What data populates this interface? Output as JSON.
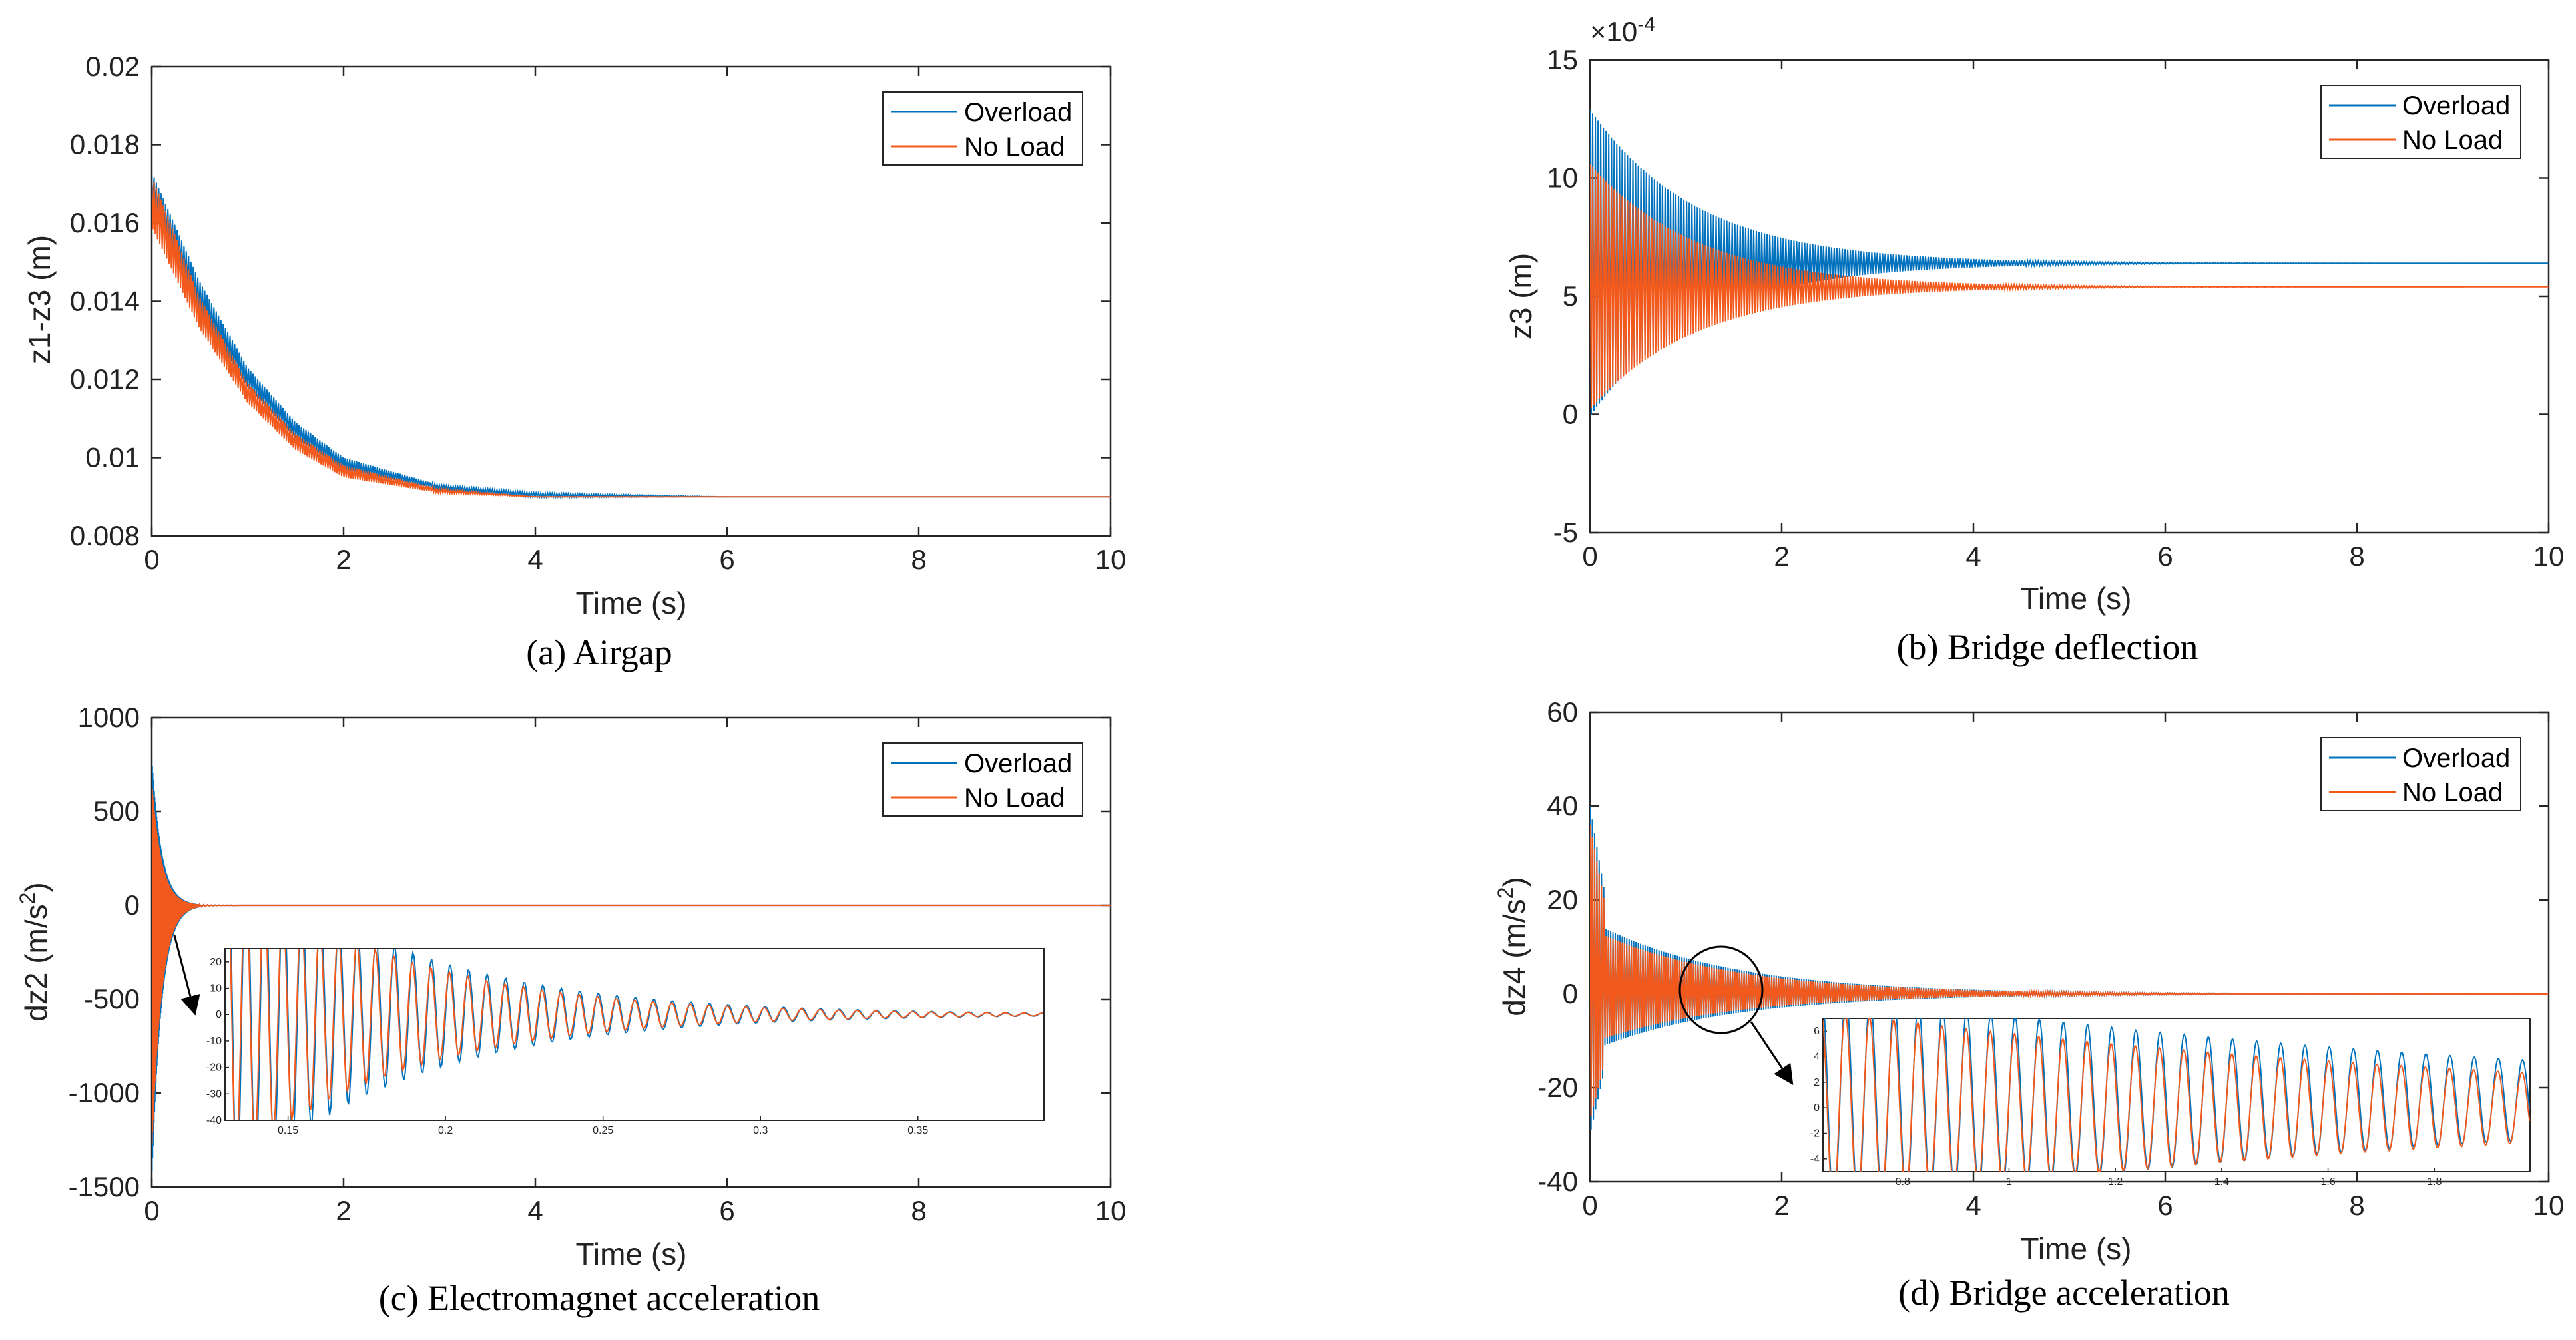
{
  "colors": {
    "overload": "#0072BD",
    "noload": "#F2591C"
  },
  "chart_data": [
    {
      "type": "line",
      "caption": "(a) Airgap",
      "xlabel": "Time (s)",
      "ylabel": "z1-z3 (m)",
      "xlim": [
        0,
        10
      ],
      "ylim": [
        0.008,
        0.02
      ],
      "xticks": [
        0,
        2,
        4,
        6,
        8,
        10
      ],
      "xtick_labels": [
        "0",
        "2",
        "4",
        "6",
        "8",
        "10"
      ],
      "yticks": [
        0.008,
        0.01,
        0.012,
        0.014,
        0.016,
        0.018,
        0.02
      ],
      "ytick_labels": [
        "0.008",
        "0.01",
        "0.012",
        "0.014",
        "0.016",
        "0.018",
        "0.02"
      ],
      "legend": [
        "Overload",
        "No Load"
      ],
      "series": [
        {
          "name": "Overload",
          "t": [
            0,
            0.5,
            1,
            1.5,
            2,
            3,
            4,
            6,
            10
          ],
          "upper": [
            0.0173,
            0.0145,
            0.0123,
            0.0109,
            0.01,
            0.0093,
            0.0091,
            0.009,
            0.009
          ],
          "lower": [
            0.0165,
            0.0137,
            0.0118,
            0.0105,
            0.0097,
            0.0092,
            0.009,
            0.009,
            0.009
          ]
        },
        {
          "name": "No Load",
          "t": [
            0,
            0.5,
            1,
            1.5,
            2,
            3,
            4,
            6,
            10
          ],
          "upper": [
            0.0172,
            0.0141,
            0.0119,
            0.0106,
            0.0098,
            0.0092,
            0.009,
            0.009,
            0.009
          ],
          "lower": [
            0.0159,
            0.0133,
            0.0114,
            0.0102,
            0.0095,
            0.0091,
            0.009,
            0.009,
            0.009
          ]
        }
      ]
    },
    {
      "type": "line",
      "caption": "(b) Bridge deflection",
      "xlabel": "Time (s)",
      "ylabel": "z3 (m)",
      "exponent": "×10",
      "exponent_power": "-4",
      "xlim": [
        0,
        10
      ],
      "ylim": [
        -5,
        15
      ],
      "xticks": [
        0,
        2,
        4,
        6,
        8,
        10
      ],
      "xtick_labels": [
        "0",
        "2",
        "4",
        "6",
        "8",
        "10"
      ],
      "yticks": [
        -5,
        0,
        5,
        10,
        15
      ],
      "ytick_labels": [
        "-5",
        "0",
        "5",
        "10",
        "15"
      ],
      "legend": [
        "Overload",
        "No Load"
      ],
      "series": [
        {
          "name": "Overload",
          "center": 6.4,
          "amp0": 6.5,
          "decay": 0.9
        },
        {
          "name": "No Load",
          "center": 5.4,
          "amp0": 5.2,
          "decay": 0.9
        }
      ]
    },
    {
      "type": "line",
      "caption": "(c) Electromagnet acceleration",
      "xlabel": "Time (s)",
      "ylabel": "dz2 (m/s",
      "ylabel_sup": "2",
      "ylabel_end": ")",
      "xlim": [
        0,
        10
      ],
      "ylim": [
        -1500,
        1000
      ],
      "xticks": [
        0,
        2,
        4,
        6,
        8,
        10
      ],
      "xtick_labels": [
        "0",
        "2",
        "4",
        "6",
        "8",
        "10"
      ],
      "yticks": [
        -1500,
        -1000,
        -500,
        0,
        500,
        1000
      ],
      "ytick_labels": [
        "-1500",
        "-1000",
        "-500",
        "0",
        "500",
        "1000"
      ],
      "legend": [
        "Overload",
        "No Load"
      ],
      "series": [
        {
          "name": "Overload",
          "peak_max": 780,
          "peak_min": -1450,
          "settle_time": 0.3
        },
        {
          "name": "No Load",
          "peak_max": 650,
          "peak_min": -1300,
          "settle_time": 0.3
        }
      ],
      "inset": {
        "xlim": [
          0.13,
          0.39
        ],
        "ylim": [
          -40,
          25
        ],
        "xticks": [
          0.15,
          0.2,
          0.25,
          0.3,
          0.35
        ],
        "xtick_labels": [
          "0.15",
          "0.2",
          "0.25",
          "0.3",
          "0.35"
        ],
        "yticks": [
          20,
          10,
          0,
          -10,
          -20,
          -30,
          -40
        ],
        "ytick_labels": [
          "20",
          "10",
          "0",
          "-10",
          "-20",
          "-30",
          "-40"
        ]
      }
    },
    {
      "type": "line",
      "caption": "(d) Bridge acceleration",
      "xlabel": "Time (s)",
      "ylabel": "dz4 (m/s",
      "ylabel_sup": "2",
      "ylabel_end": ")",
      "xlim": [
        0,
        10
      ],
      "ylim": [
        -40,
        60
      ],
      "xticks": [
        0,
        2,
        4,
        6,
        8,
        10
      ],
      "xtick_labels": [
        "0",
        "2",
        "4",
        "6",
        "8",
        "10"
      ],
      "yticks": [
        -40,
        -20,
        0,
        20,
        40,
        60
      ],
      "ytick_labels": [
        "-40",
        "-20",
        "0",
        "20",
        "40",
        "60"
      ],
      "legend": [
        "Overload",
        "No Load"
      ],
      "series": [
        {
          "name": "Overload",
          "peak_max": 40,
          "peak_min": -30,
          "settle_time": 5
        },
        {
          "name": "No Load",
          "peak_max": 36,
          "peak_min": -27,
          "settle_time": 5
        }
      ],
      "inset": {
        "xlim": [
          0.65,
          1.98
        ],
        "ylim": [
          -5,
          7
        ],
        "xticks": [
          0.8,
          1,
          1.2,
          1.4,
          1.6,
          1.8
        ],
        "xtick_labels": [
          "0.8",
          "1",
          "1.2",
          "1.4",
          "1.6",
          "1.8"
        ],
        "yticks": [
          6,
          4,
          2,
          0,
          -2,
          -4
        ],
        "ytick_labels": [
          "6",
          "4",
          "2",
          "0",
          "-2",
          "-4"
        ]
      }
    }
  ]
}
